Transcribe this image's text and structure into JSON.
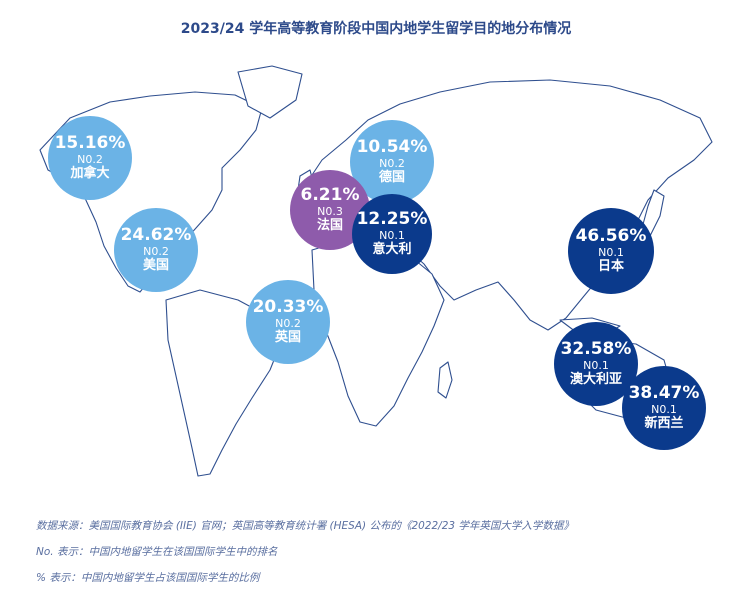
{
  "title": "2023/24 学年高等教育阶段中国内地学生留学目的地分布情况",
  "colors": {
    "light_blue": "#6bb3e6",
    "purple": "#8e5bab",
    "dark_blue": "#0b3a8c",
    "outline": "#2f4f8f"
  },
  "bubbles": [
    {
      "pct": "15.16%",
      "rank": "N0.2",
      "country": "加拿大",
      "color": "light_blue"
    },
    {
      "pct": "24.62%",
      "rank": "N0.2",
      "country": "美国",
      "color": "light_blue"
    },
    {
      "pct": "20.33%",
      "rank": "N0.2",
      "country": "英国",
      "color": "light_blue"
    },
    {
      "pct": "10.54%",
      "rank": "N0.2",
      "country": "德国",
      "color": "light_blue"
    },
    {
      "pct": "6.21%",
      "rank": "N0.3",
      "country": "法国",
      "color": "purple"
    },
    {
      "pct": "12.25%",
      "rank": "N0.1",
      "country": "意大利",
      "color": "dark_blue"
    },
    {
      "pct": "46.56%",
      "rank": "N0.1",
      "country": "日本",
      "color": "dark_blue"
    },
    {
      "pct": "32.58%",
      "rank": "N0.1",
      "country": "澳大利亚",
      "color": "dark_blue"
    },
    {
      "pct": "38.47%",
      "rank": "N0.1",
      "country": "新西兰",
      "color": "dark_blue"
    }
  ],
  "notes": {
    "source": "数据来源：美国国际教育协会 (IIE) 官网；英国高等教育统计署 (HESA) 公布的《2022/23 学年英国大学入学数据》",
    "rank_note": "No. 表示：中国内地留学生在该国国际学生中的排名",
    "pct_note": "% 表示：中国内地留学生占该国国际学生的比例"
  }
}
